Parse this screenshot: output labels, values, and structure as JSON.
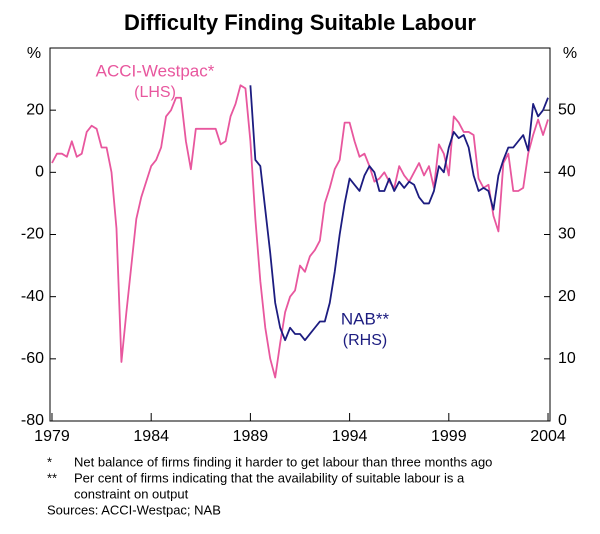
{
  "chart_data": {
    "type": "line",
    "title": "Difficulty Finding Suitable Labour",
    "ylabel": "%",
    "y2label": "%",
    "xlim": [
      1978.9,
      2004.1
    ],
    "xticks": [
      1979,
      1984,
      1989,
      1994,
      1999,
      2004
    ],
    "ylim": [
      -80,
      40
    ],
    "yticks": [
      -80,
      -60,
      -40,
      -20,
      0,
      20
    ],
    "y2lim": [
      0,
      60
    ],
    "y2ticks": [
      0,
      10,
      20,
      30,
      40,
      50
    ],
    "grid": false,
    "series": [
      {
        "name": "ACCI-Westpac*",
        "axis_note": "(LHS)",
        "axis": "y",
        "color": "#e8579e",
        "x": [
          1979,
          1979.25,
          1979.5,
          1979.75,
          1980,
          1980.25,
          1980.5,
          1980.75,
          1981,
          1981.25,
          1981.5,
          1981.75,
          1982,
          1982.25,
          1982.5,
          1982.75,
          1983,
          1983.25,
          1983.5,
          1983.75,
          1984,
          1984.25,
          1984.5,
          1984.75,
          1985,
          1985.25,
          1985.5,
          1985.75,
          1986,
          1986.25,
          1986.5,
          1986.75,
          1987,
          1987.25,
          1987.5,
          1987.75,
          1988,
          1988.25,
          1988.5,
          1988.75,
          1989,
          1989.25,
          1989.5,
          1989.75,
          1990,
          1990.25,
          1990.5,
          1990.75,
          1991,
          1991.25,
          1991.5,
          1991.75,
          1992,
          1992.25,
          1992.5,
          1992.75,
          1993,
          1993.25,
          1993.5,
          1993.75,
          1994,
          1994.25,
          1994.5,
          1994.75,
          1995,
          1995.25,
          1995.5,
          1995.75,
          1996,
          1996.25,
          1996.5,
          1996.75,
          1997,
          1997.25,
          1997.5,
          1997.75,
          1998,
          1998.25,
          1998.5,
          1998.75,
          1999,
          1999.25,
          1999.5,
          1999.75,
          2000,
          2000.25,
          2000.5,
          2000.75,
          2001,
          2001.25,
          2001.5,
          2001.75,
          2002,
          2002.25,
          2002.5,
          2002.75,
          2003,
          2003.25,
          2003.5,
          2003.75,
          2004
        ],
        "values": [
          3,
          6,
          6,
          5,
          10,
          5,
          6,
          13,
          15,
          14,
          8,
          8,
          0,
          -18,
          -61,
          -45,
          -30,
          -15,
          -8,
          -3,
          2,
          4,
          8,
          18,
          20,
          24,
          24,
          10,
          1,
          14,
          14,
          14,
          14,
          14,
          9,
          10,
          18,
          22,
          28,
          27,
          10,
          -15,
          -35,
          -50,
          -60,
          -66,
          -55,
          -45,
          -40,
          -38,
          -30,
          -32,
          -27,
          -25,
          -22,
          -10,
          -5,
          1,
          4,
          16,
          16,
          10,
          5,
          6,
          2,
          -3,
          -2,
          0,
          -3,
          -5,
          2,
          -1,
          -3,
          0,
          3,
          -1,
          2,
          -5,
          9,
          6,
          -1,
          18,
          16,
          13,
          13,
          12,
          -2,
          -5,
          -4,
          -14,
          -19,
          3,
          6,
          -6,
          -6,
          -5,
          6,
          12,
          17,
          12,
          17
        ]
      },
      {
        "name": "NAB**",
        "axis_note": "(RHS)",
        "axis": "y2",
        "color": "#1c1c80",
        "x": [
          1989,
          1989.25,
          1989.5,
          1989.75,
          1990,
          1990.25,
          1990.5,
          1990.75,
          1991,
          1991.25,
          1991.5,
          1991.75,
          1992,
          1992.25,
          1992.5,
          1992.75,
          1993,
          1993.25,
          1993.5,
          1993.75,
          1994,
          1994.25,
          1994.5,
          1994.75,
          1995,
          1995.25,
          1995.5,
          1995.75,
          1996,
          1996.25,
          1996.5,
          1996.75,
          1997,
          1997.25,
          1997.5,
          1997.75,
          1998,
          1998.25,
          1998.5,
          1998.75,
          1999,
          1999.25,
          1999.5,
          1999.75,
          2000,
          2000.25,
          2000.5,
          2000.75,
          2001,
          2001.25,
          2001.5,
          2001.75,
          2002,
          2002.25,
          2002.5,
          2002.75,
          2003,
          2003.25,
          2003.5,
          2003.75,
          2004
        ],
        "values": [
          54,
          42,
          41,
          34,
          27,
          19,
          15,
          13,
          15,
          14,
          14,
          13,
          14,
          15,
          16,
          16,
          19,
          24,
          30,
          35,
          39,
          38,
          37,
          39.5,
          41,
          40,
          37,
          37,
          39,
          37,
          38.5,
          37.5,
          38.5,
          38,
          36,
          35,
          35,
          37,
          41,
          40,
          44,
          46.5,
          45.5,
          46,
          44,
          39.5,
          37,
          37.5,
          37,
          34,
          39.5,
          42,
          44,
          44,
          45,
          46,
          43.5,
          51,
          49,
          50,
          52
        ]
      }
    ],
    "notes": [
      {
        "marker": "*",
        "text": "Net balance of firms finding it harder to get labour than three months ago"
      },
      {
        "marker": "**",
        "text": "Per cent of firms indicating that the availability of suitable labour is a"
      },
      {
        "marker": "",
        "text": "constraint on output"
      }
    ],
    "sources": "Sources: ACCI-Westpac; NAB"
  }
}
